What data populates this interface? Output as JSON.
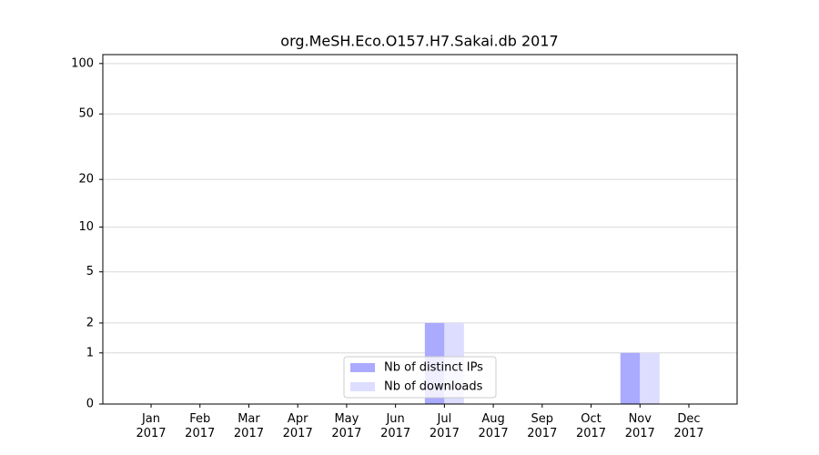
{
  "chart_data": {
    "type": "bar",
    "title": "org.MeSH.Eco.O157.H7.Sakai.db 2017",
    "categories": [
      "Jan 2017",
      "Feb 2017",
      "Mar 2017",
      "Apr 2017",
      "May 2017",
      "Jun 2017",
      "Jul 2017",
      "Aug 2017",
      "Sep 2017",
      "Oct 2017",
      "Nov 2017",
      "Dec 2017"
    ],
    "series": [
      {
        "name": "Nb of distinct IPs",
        "color": "#aaaaff",
        "values": [
          0,
          0,
          0,
          0,
          0,
          0,
          2,
          0,
          0,
          0,
          1,
          0
        ]
      },
      {
        "name": "Nb of downloads",
        "color": "#ddddff",
        "values": [
          0,
          0,
          0,
          0,
          0,
          0,
          2,
          0,
          0,
          0,
          1,
          0
        ]
      }
    ],
    "yscale": "log1p",
    "ylim": [
      0,
      113
    ],
    "yticks": [
      0,
      1,
      2,
      5,
      10,
      20,
      50,
      100
    ],
    "grid": true,
    "legend": "bottom"
  }
}
